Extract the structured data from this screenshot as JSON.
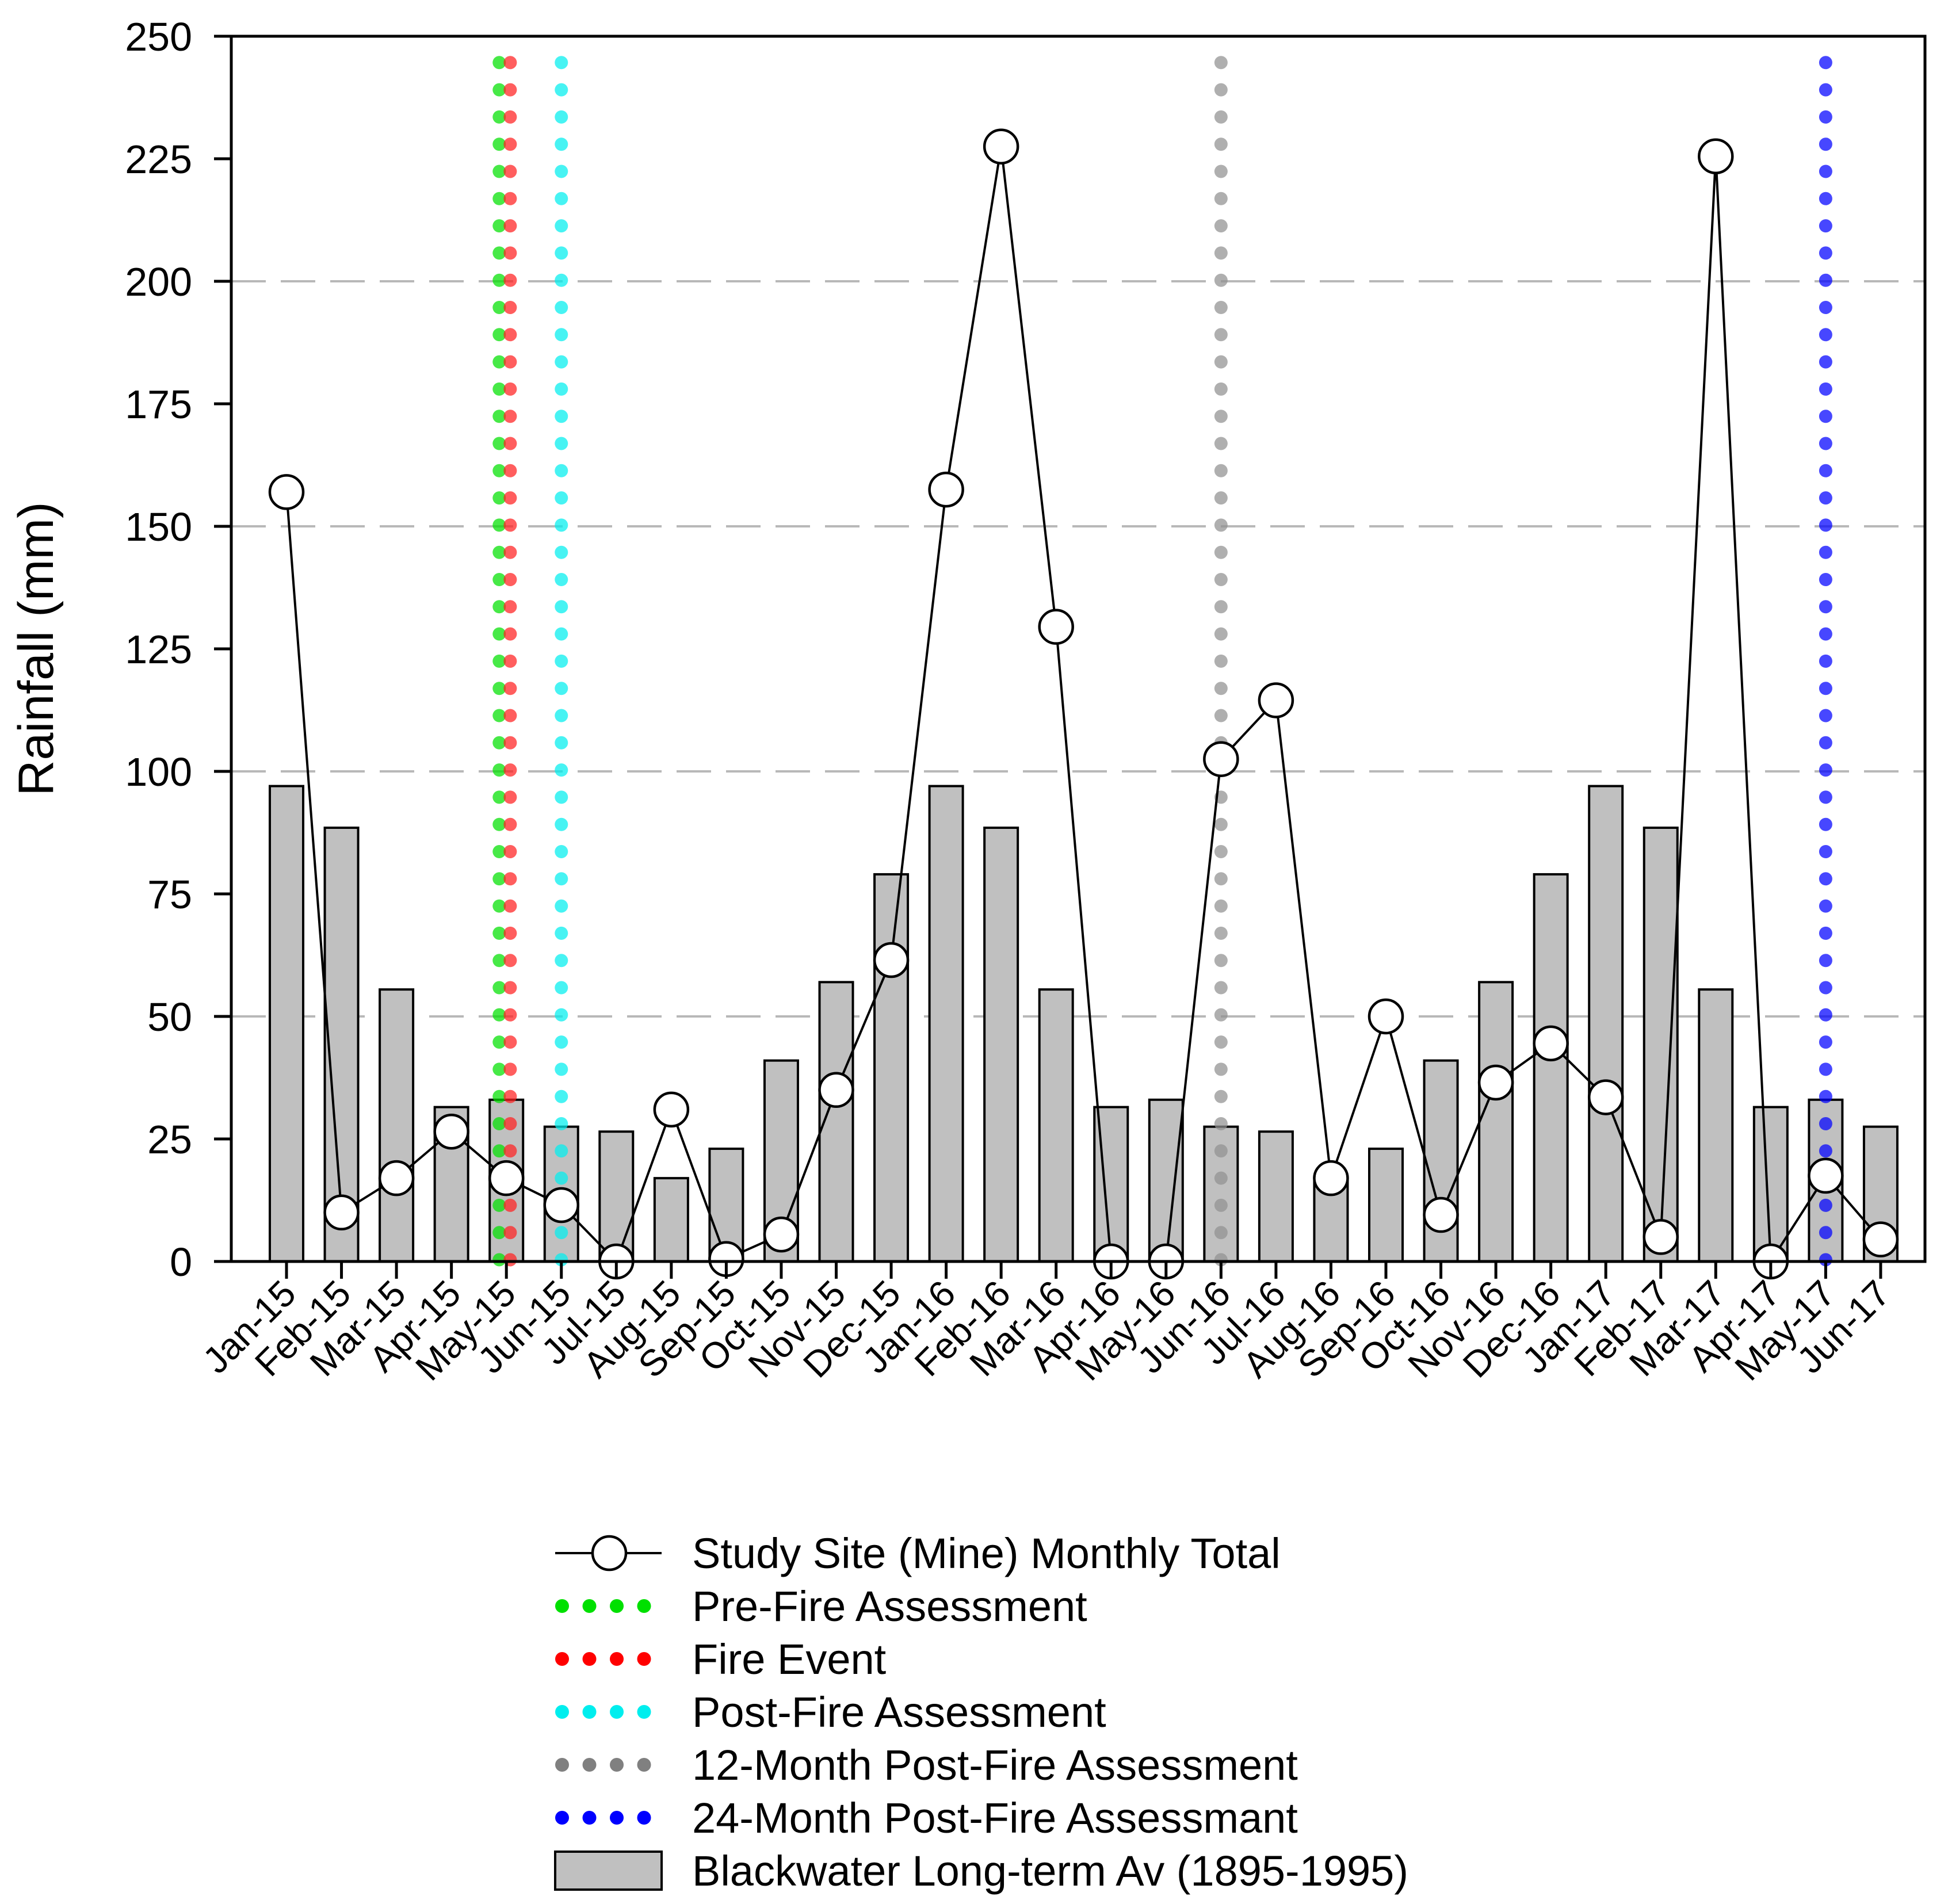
{
  "chart_data": {
    "type": "bar",
    "title": "",
    "xlabel": "",
    "ylabel": "Rainfall (mm)",
    "ylim": [
      0,
      250
    ],
    "yticks": [
      0,
      25,
      50,
      75,
      100,
      125,
      150,
      175,
      200,
      225,
      250
    ],
    "grid": "horizontal dashed at 50, 100, 150, 200",
    "categories": [
      "Jan-15",
      "Feb-15",
      "Mar-15",
      "Apr-15",
      "May-15",
      "Jun-15",
      "Jul-15",
      "Aug-15",
      "Sep-15",
      "Oct-15",
      "Nov-15",
      "Dec-15",
      "Jan-16",
      "Feb-16",
      "Mar-16",
      "Apr-16",
      "May-16",
      "Jun-16",
      "Jul-16",
      "Aug-16",
      "Sep-16",
      "Oct-16",
      "Nov-16",
      "Dec-16",
      "Jan-17",
      "Feb-17",
      "Mar-17",
      "Apr-17",
      "May-17",
      "Jun-17"
    ],
    "series": [
      {
        "name": "Blackwater Long-term Av (1895-1995)",
        "kind": "bar",
        "color": "#c0c0c0",
        "values": [
          97,
          88.5,
          55.5,
          31.5,
          33,
          27.5,
          26.5,
          17,
          23,
          41,
          57,
          79,
          97,
          88.5,
          55.5,
          31.5,
          33,
          27.5,
          26.5,
          17,
          23,
          41,
          57,
          79,
          97,
          88.5,
          55.5,
          31.5,
          33,
          27.5
        ]
      },
      {
        "name": "Study Site (Mine) Monthly Total",
        "kind": "line",
        "color": "#000000",
        "values": [
          157,
          10,
          17,
          26.5,
          17,
          11.5,
          0,
          31,
          0.5,
          5.5,
          35,
          61.5,
          157.5,
          227.5,
          129.5,
          0,
          0,
          102.5,
          114.5,
          17,
          50,
          9.5,
          36.5,
          44.5,
          33.5,
          5,
          225.5,
          0,
          17.5,
          4.5
        ]
      }
    ],
    "markers": [
      {
        "name": "Pre-Fire Assessment",
        "position": 3.87,
        "color": "#00e000"
      },
      {
        "name": "Fire Event",
        "position": 4.07,
        "color": "#ff2020"
      },
      {
        "name": "Post-Fire Assessment",
        "position": 5.0,
        "color": "#00eeee"
      },
      {
        "name": "12-Month Post-Fire Assessment",
        "position": 17.0,
        "color": "#909090"
      },
      {
        "name": "24-Month Post-Fire Assessmant",
        "position": 28.0,
        "color": "#0000ff"
      }
    ],
    "legend_position": "bottom-center",
    "legend": [
      {
        "label": "Study Site (Mine) Monthly Total",
        "kind": "line"
      },
      {
        "label": "Pre-Fire Assessment",
        "kind": "dots",
        "color": "#00e000"
      },
      {
        "label": "Fire Event",
        "kind": "dots",
        "color": "#ff0000"
      },
      {
        "label": "Post-Fire Assessment",
        "kind": "dots",
        "color": "#00eeee"
      },
      {
        "label": "12-Month Post-Fire Assessment",
        "kind": "dots",
        "color": "#808080"
      },
      {
        "label": "24-Month Post-Fire Assessmant",
        "kind": "dots",
        "color": "#0000ff"
      },
      {
        "label": "Blackwater Long-term Av (1895-1995)",
        "kind": "bar"
      }
    ]
  }
}
